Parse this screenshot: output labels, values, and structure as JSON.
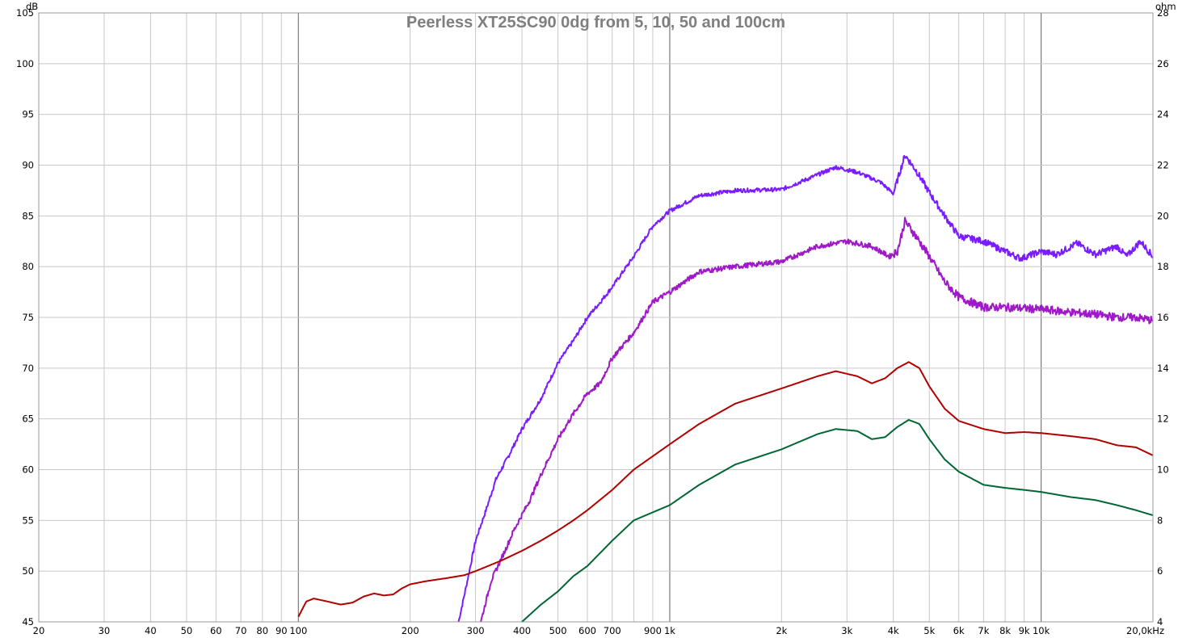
{
  "chart_data": {
    "type": "line",
    "title": "Peerless XT25SC90 0dg from 5, 10, 50 and 100cm",
    "x_scale": "log",
    "xlim": [
      20,
      20000
    ],
    "ylim": [
      45,
      105
    ],
    "y2lim": [
      4,
      28
    ],
    "y_unit": "dB",
    "y2_unit": "ohm",
    "grid": true,
    "legend": "none",
    "x_ticks": [
      {
        "v": 20,
        "label": "20"
      },
      {
        "v": 30,
        "label": "30"
      },
      {
        "v": 40,
        "label": "40"
      },
      {
        "v": 50,
        "label": "50"
      },
      {
        "v": 60,
        "label": "60"
      },
      {
        "v": 70,
        "label": "70"
      },
      {
        "v": 80,
        "label": "80"
      },
      {
        "v": 90,
        "label": "90"
      },
      {
        "v": 100,
        "label": "100"
      },
      {
        "v": 200,
        "label": "200"
      },
      {
        "v": 300,
        "label": "300"
      },
      {
        "v": 400,
        "label": "400"
      },
      {
        "v": 500,
        "label": "500"
      },
      {
        "v": 600,
        "label": "600"
      },
      {
        "v": 700,
        "label": "700"
      },
      {
        "v": 900,
        "label": "900"
      },
      {
        "v": 1000,
        "label": "1k"
      },
      {
        "v": 2000,
        "label": "2k"
      },
      {
        "v": 3000,
        "label": "3k"
      },
      {
        "v": 4000,
        "label": "4k"
      },
      {
        "v": 5000,
        "label": "5k"
      },
      {
        "v": 6000,
        "label": "6k"
      },
      {
        "v": 7000,
        "label": "7k"
      },
      {
        "v": 8000,
        "label": "8k"
      },
      {
        "v": 9000,
        "label": "9k"
      },
      {
        "v": 10000,
        "label": "10k"
      },
      {
        "v": 20000,
        "label": "20,0kHz"
      }
    ],
    "y_ticks": [
      45,
      50,
      55,
      60,
      65,
      70,
      75,
      80,
      85,
      90,
      95,
      100,
      105
    ],
    "y2_ticks": [
      4,
      6,
      8,
      10,
      12,
      14,
      16,
      18,
      20,
      22,
      24,
      26,
      28
    ],
    "series": [
      {
        "color": "#7a1cff",
        "noise": 0.4,
        "points": [
          [
            270,
            45
          ],
          [
            285,
            49
          ],
          [
            300,
            53
          ],
          [
            320,
            56
          ],
          [
            340,
            59
          ],
          [
            370,
            61.5
          ],
          [
            400,
            64
          ],
          [
            450,
            67
          ],
          [
            500,
            70.5
          ],
          [
            550,
            72.7
          ],
          [
            600,
            75
          ],
          [
            650,
            76.5
          ],
          [
            700,
            78
          ],
          [
            800,
            81
          ],
          [
            900,
            84
          ],
          [
            1000,
            85.5
          ],
          [
            1200,
            87
          ],
          [
            1500,
            87.5
          ],
          [
            2000,
            87.6
          ],
          [
            2300,
            88.5
          ],
          [
            2800,
            89.8
          ],
          [
            3200,
            89.3
          ],
          [
            3700,
            88.3
          ],
          [
            4000,
            87.2
          ],
          [
            4100,
            88.5
          ],
          [
            4300,
            91
          ],
          [
            4600,
            89.5
          ],
          [
            5000,
            87.3
          ],
          [
            5500,
            85
          ],
          [
            6000,
            83
          ],
          [
            7000,
            82.5
          ],
          [
            8000,
            81.5
          ],
          [
            8800,
            80.8
          ],
          [
            10000,
            81.5
          ],
          [
            11000,
            81.2
          ],
          [
            12500,
            82.3
          ],
          [
            14000,
            81.2
          ],
          [
            16000,
            82
          ],
          [
            17000,
            81
          ],
          [
            18500,
            82.5
          ],
          [
            20000,
            81
          ]
        ]
      },
      {
        "color": "#a019c8",
        "noise": 0.5,
        "points": [
          [
            310,
            45
          ],
          [
            330,
            49
          ],
          [
            360,
            52
          ],
          [
            380,
            54
          ],
          [
            420,
            57
          ],
          [
            450,
            59.5
          ],
          [
            500,
            63
          ],
          [
            550,
            65.5
          ],
          [
            600,
            67.5
          ],
          [
            650,
            68.5
          ],
          [
            700,
            71
          ],
          [
            800,
            73.5
          ],
          [
            900,
            76.5
          ],
          [
            1000,
            77.5
          ],
          [
            1200,
            79.5
          ],
          [
            1500,
            80
          ],
          [
            2000,
            80.5
          ],
          [
            2500,
            82
          ],
          [
            3000,
            82.5
          ],
          [
            3500,
            82
          ],
          [
            3900,
            81
          ],
          [
            4100,
            81.5
          ],
          [
            4300,
            84.5
          ],
          [
            4600,
            83
          ],
          [
            5000,
            81
          ],
          [
            5500,
            78.5
          ],
          [
            6000,
            77
          ],
          [
            7000,
            76
          ],
          [
            8000,
            76
          ],
          [
            10000,
            75.8
          ],
          [
            12000,
            75.5
          ],
          [
            14000,
            75.3
          ],
          [
            16000,
            75
          ],
          [
            18000,
            75
          ],
          [
            20000,
            74.7
          ]
        ]
      },
      {
        "color": "#b00000",
        "noise": 0,
        "points": [
          [
            100,
            45.5
          ],
          [
            105,
            47
          ],
          [
            110,
            47.3
          ],
          [
            120,
            47
          ],
          [
            130,
            46.7
          ],
          [
            140,
            46.9
          ],
          [
            150,
            47.5
          ],
          [
            160,
            47.8
          ],
          [
            170,
            47.6
          ],
          [
            180,
            47.7
          ],
          [
            190,
            48.3
          ],
          [
            200,
            48.7
          ],
          [
            220,
            49
          ],
          [
            250,
            49.3
          ],
          [
            280,
            49.6
          ],
          [
            300,
            50
          ],
          [
            350,
            51
          ],
          [
            400,
            52
          ],
          [
            450,
            53
          ],
          [
            500,
            54
          ],
          [
            550,
            55
          ],
          [
            600,
            56
          ],
          [
            700,
            58
          ],
          [
            800,
            60
          ],
          [
            1000,
            62.5
          ],
          [
            1200,
            64.5
          ],
          [
            1500,
            66.5
          ],
          [
            2000,
            68
          ],
          [
            2500,
            69.2
          ],
          [
            2800,
            69.7
          ],
          [
            3200,
            69.2
          ],
          [
            3500,
            68.5
          ],
          [
            3800,
            69
          ],
          [
            4100,
            70
          ],
          [
            4400,
            70.6
          ],
          [
            4700,
            70
          ],
          [
            5000,
            68.2
          ],
          [
            5500,
            66
          ],
          [
            6000,
            64.8
          ],
          [
            7000,
            64
          ],
          [
            8000,
            63.6
          ],
          [
            9000,
            63.7
          ],
          [
            10000,
            63.6
          ],
          [
            12000,
            63.3
          ],
          [
            14000,
            63
          ],
          [
            16000,
            62.4
          ],
          [
            18000,
            62.2
          ],
          [
            20000,
            61.4
          ]
        ]
      },
      {
        "color": "#006633",
        "noise": 0,
        "points": [
          [
            400,
            45
          ],
          [
            450,
            46.7
          ],
          [
            500,
            48
          ],
          [
            550,
            49.5
          ],
          [
            600,
            50.5
          ],
          [
            700,
            53
          ],
          [
            800,
            55
          ],
          [
            1000,
            56.5
          ],
          [
            1200,
            58.5
          ],
          [
            1500,
            60.5
          ],
          [
            2000,
            62
          ],
          [
            2500,
            63.5
          ],
          [
            2800,
            64
          ],
          [
            3200,
            63.8
          ],
          [
            3500,
            63
          ],
          [
            3800,
            63.2
          ],
          [
            4100,
            64.2
          ],
          [
            4400,
            64.9
          ],
          [
            4700,
            64.5
          ],
          [
            5000,
            63
          ],
          [
            5500,
            61
          ],
          [
            6000,
            59.8
          ],
          [
            7000,
            58.5
          ],
          [
            8000,
            58.2
          ],
          [
            9000,
            58
          ],
          [
            10000,
            57.8
          ],
          [
            12000,
            57.3
          ],
          [
            14000,
            57
          ],
          [
            16000,
            56.5
          ],
          [
            18000,
            56
          ],
          [
            20000,
            55.5
          ]
        ]
      }
    ]
  }
}
